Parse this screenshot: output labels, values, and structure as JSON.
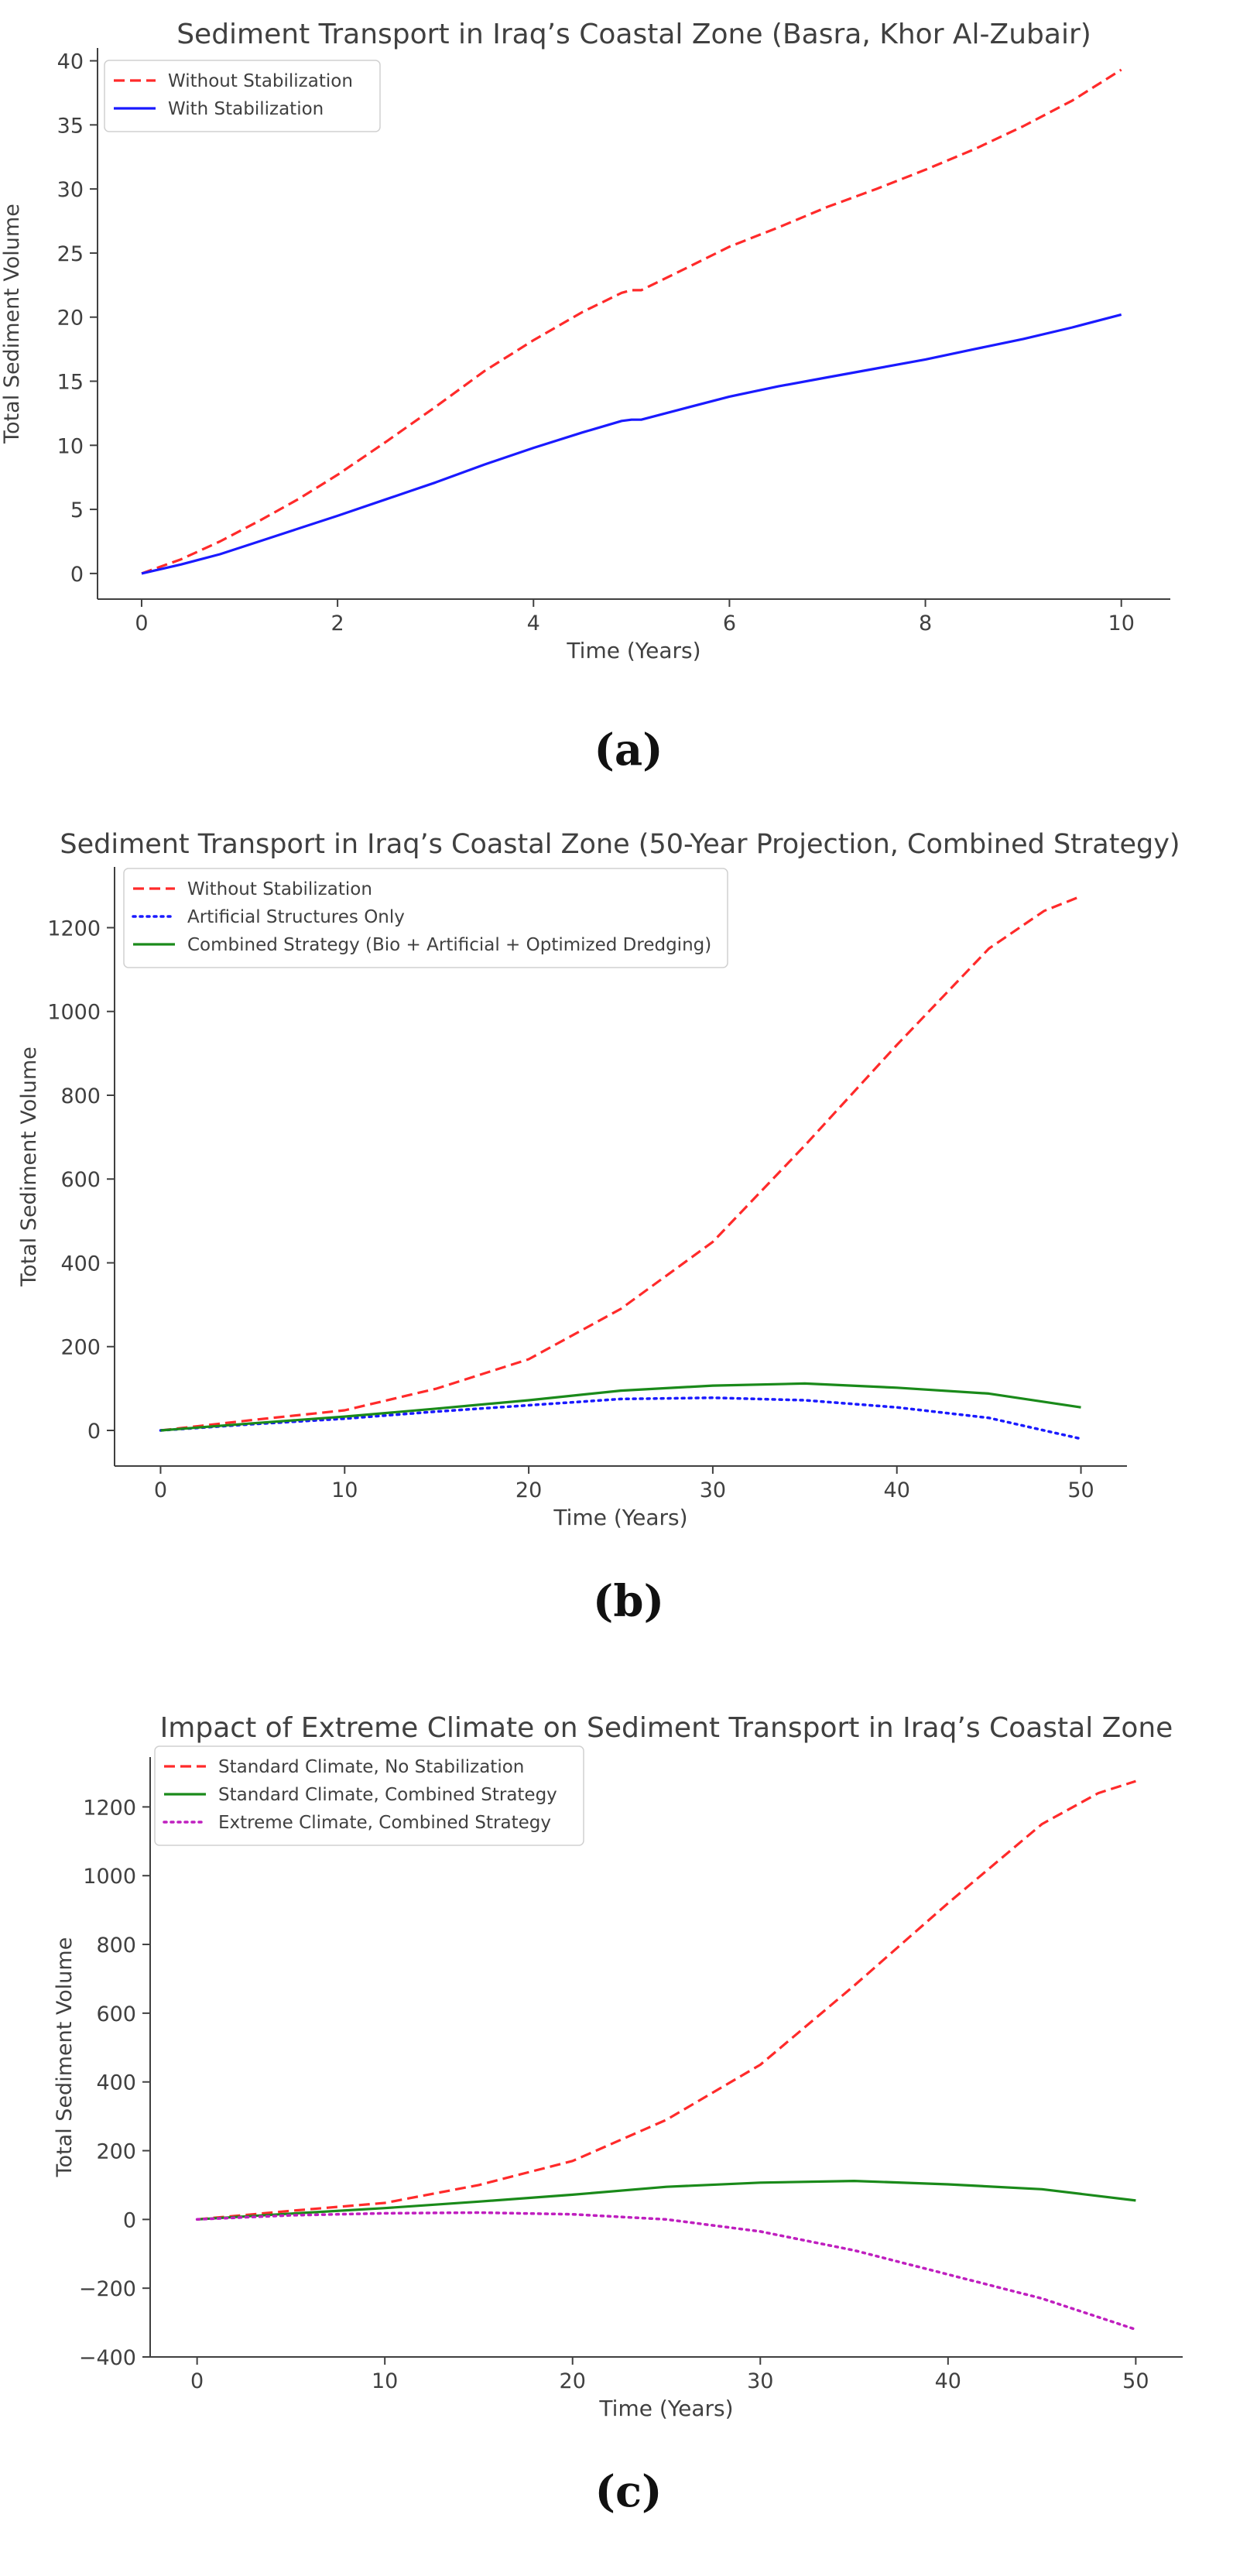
{
  "colors": {
    "red": "#ff2a2a",
    "blue": "#1a1aff",
    "green": "#1a8a1a",
    "purple": "#bf1fbf",
    "axis": "#404040",
    "text": "#404040"
  },
  "chart_data": [
    {
      "type": "line",
      "panel_label": "(a)",
      "title": "Sediment Transport in Iraq’s Coastal Zone (Basra, Khor Al-Zubair)",
      "xlabel": "Time (Years)",
      "ylabel": "Total Sediment Volume",
      "xlim": [
        -0.45,
        10.5
      ],
      "ylim": [
        -2.0,
        41.0
      ],
      "xticks": [
        0,
        2,
        4,
        6,
        8,
        10
      ],
      "yticks": [
        0,
        5,
        10,
        15,
        20,
        25,
        30,
        35,
        40
      ],
      "legend_position": "top-left",
      "series": [
        {
          "name": "Without Stabilization",
          "style": "dashed",
          "color": "red",
          "x": [
            0,
            0.4,
            0.8,
            1.2,
            1.6,
            2.0,
            2.5,
            3.0,
            3.5,
            4.0,
            4.5,
            4.9,
            5.0,
            5.1,
            5.5,
            6.0,
            6.5,
            7.0,
            7.5,
            8.0,
            8.5,
            9.0,
            9.5,
            10.0
          ],
          "y": [
            0,
            1.1,
            2.5,
            4.1,
            5.8,
            7.7,
            10.3,
            13.0,
            15.8,
            18.2,
            20.4,
            21.9,
            22.1,
            22.1,
            23.6,
            25.5,
            27.0,
            28.6,
            30.0,
            31.5,
            33.1,
            34.9,
            36.9,
            39.3
          ]
        },
        {
          "name": "With Stabilization",
          "style": "solid",
          "color": "blue",
          "x": [
            0,
            0.4,
            0.8,
            1.2,
            1.6,
            2.0,
            2.5,
            3.0,
            3.5,
            4.0,
            4.5,
            4.9,
            5.0,
            5.1,
            5.5,
            6.0,
            6.5,
            7.0,
            7.5,
            8.0,
            8.5,
            9.0,
            9.5,
            10.0
          ],
          "y": [
            0,
            0.7,
            1.5,
            2.5,
            3.5,
            4.5,
            5.8,
            7.1,
            8.5,
            9.8,
            11.0,
            11.9,
            12.0,
            12.0,
            12.8,
            13.8,
            14.6,
            15.3,
            16.0,
            16.7,
            17.5,
            18.3,
            19.2,
            20.2
          ]
        }
      ]
    },
    {
      "type": "line",
      "panel_label": "(b)",
      "title": "Sediment Transport in Iraq’s Coastal Zone (50-Year Projection, Combined Strategy)",
      "xlabel": "Time (Years)",
      "ylabel": "Total Sediment Volume",
      "xlim": [
        -2.5,
        52.5
      ],
      "ylim": [
        -85,
        1345
      ],
      "xticks": [
        0,
        10,
        20,
        30,
        40,
        50
      ],
      "yticks": [
        0,
        200,
        400,
        600,
        800,
        1000,
        1200
      ],
      "legend_position": "top-left",
      "series": [
        {
          "name": "Without Stabilization",
          "style": "dashed",
          "color": "red",
          "x": [
            0,
            5,
            10,
            15,
            20,
            25,
            30,
            35,
            40,
            45,
            48,
            50
          ],
          "y": [
            0,
            25,
            48,
            100,
            170,
            290,
            450,
            680,
            920,
            1150,
            1240,
            1275
          ]
        },
        {
          "name": "Artificial Structures Only",
          "style": "dotted",
          "color": "blue",
          "x": [
            0,
            5,
            10,
            15,
            20,
            25,
            30,
            35,
            40,
            45,
            50
          ],
          "y": [
            0,
            15,
            28,
            45,
            60,
            75,
            78,
            72,
            55,
            30,
            -20
          ]
        },
        {
          "name": "Combined Strategy (Bio + Artificial + Optimized Dredging)",
          "style": "solid",
          "color": "green",
          "x": [
            0,
            5,
            10,
            15,
            20,
            25,
            30,
            35,
            40,
            45,
            50
          ],
          "y": [
            0,
            17,
            33,
            52,
            72,
            95,
            107,
            112,
            102,
            88,
            55
          ]
        }
      ]
    },
    {
      "type": "line",
      "panel_label": "(c)",
      "title": "Impact of Extreme Climate on Sediment Transport in Iraq’s Coastal Zone",
      "xlabel": "Time (Years)",
      "ylabel": "Total Sediment Volume",
      "xlim": [
        -2.5,
        52.5
      ],
      "ylim": [
        -400,
        1345
      ],
      "xticks": [
        0,
        10,
        20,
        30,
        40,
        50
      ],
      "yticks": [
        -400,
        -200,
        0,
        200,
        400,
        600,
        800,
        1000,
        1200
      ],
      "legend_position": "top-left",
      "series": [
        {
          "name": "Standard Climate, No Stabilization",
          "style": "dashed",
          "color": "red",
          "x": [
            0,
            5,
            10,
            15,
            20,
            25,
            30,
            35,
            40,
            45,
            48,
            50
          ],
          "y": [
            0,
            25,
            48,
            100,
            170,
            290,
            450,
            680,
            920,
            1150,
            1240,
            1275
          ]
        },
        {
          "name": "Standard Climate, Combined Strategy",
          "style": "solid",
          "color": "green",
          "x": [
            0,
            5,
            10,
            15,
            20,
            25,
            30,
            35,
            40,
            45,
            50
          ],
          "y": [
            0,
            17,
            33,
            52,
            72,
            95,
            107,
            112,
            102,
            88,
            55
          ]
        },
        {
          "name": "Extreme Climate, Combined Strategy",
          "style": "dotted",
          "color": "purple",
          "x": [
            0,
            5,
            10,
            15,
            20,
            25,
            30,
            35,
            40,
            45,
            50
          ],
          "y": [
            0,
            12,
            18,
            20,
            15,
            0,
            -35,
            -90,
            -160,
            -230,
            -320
          ]
        }
      ]
    }
  ]
}
